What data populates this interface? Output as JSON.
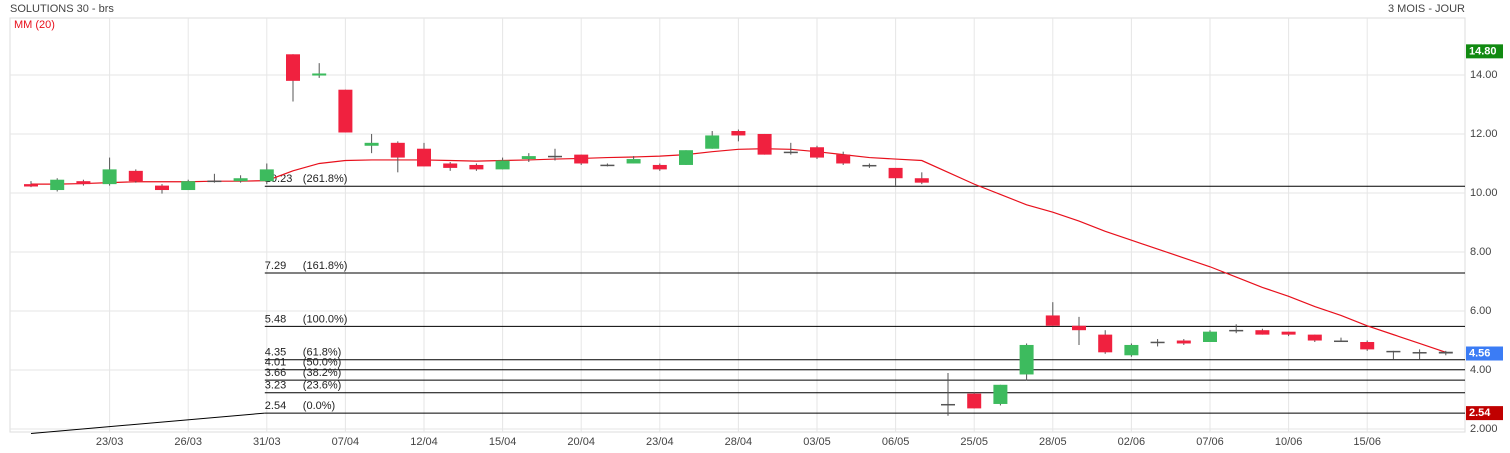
{
  "chart_data": {
    "type": "candlestick",
    "title": "SOLUTIONS 30 - brs",
    "period": "3 MOIS - JOUR",
    "categories": [
      null,
      null,
      null,
      "23/03",
      null,
      null,
      "26/03",
      null,
      null,
      "31/03",
      null,
      null,
      "07/04",
      null,
      null,
      "12/04",
      null,
      null,
      "15/04",
      null,
      null,
      "20/04",
      null,
      null,
      "23/04",
      null,
      null,
      "28/04",
      null,
      null,
      "03/05",
      null,
      null,
      "06/05",
      null,
      null,
      "25/05",
      null,
      null,
      "28/05",
      null,
      null,
      "02/06",
      null,
      null,
      "07/06",
      null,
      null,
      "10/06",
      null,
      null,
      "15/06",
      null,
      null,
      null
    ],
    "open": [
      10.3,
      10.1,
      10.4,
      10.3,
      10.75,
      10.25,
      10.1,
      10.4,
      10.4,
      10.4,
      14.7,
      13.98,
      13.5,
      11.6,
      11.7,
      11.5,
      11.0,
      10.95,
      10.8,
      11.15,
      11.25,
      11.3,
      10.95,
      11.0,
      10.95,
      10.95,
      11.5,
      12.1,
      12.0,
      11.35,
      11.55,
      11.3,
      10.95,
      10.85,
      10.5,
      2.8,
      3.2,
      2.85,
      3.85,
      5.85,
      5.5,
      5.2,
      4.5,
      4.95,
      5.0,
      4.95,
      5.35,
      5.35,
      5.3,
      5.2,
      5.0,
      4.95,
      4.65,
      4.6,
      4.62
    ],
    "high": [
      10.4,
      10.5,
      10.45,
      11.2,
      10.8,
      10.3,
      10.45,
      10.65,
      10.6,
      11.0,
      14.7,
      14.4,
      13.5,
      12.0,
      11.75,
      11.7,
      11.05,
      11.0,
      11.2,
      11.35,
      11.5,
      11.3,
      11.0,
      11.25,
      11.0,
      11.45,
      12.1,
      12.15,
      12.0,
      11.7,
      11.6,
      11.4,
      11.0,
      10.85,
      10.7,
      3.9,
      3.25,
      3.5,
      4.9,
      6.3,
      5.8,
      5.35,
      4.9,
      5.05,
      5.05,
      5.35,
      5.55,
      5.4,
      5.3,
      5.2,
      5.1,
      5.0,
      4.65,
      4.7,
      4.65
    ],
    "low": [
      10.2,
      10.05,
      10.25,
      10.25,
      10.35,
      9.98,
      10.1,
      10.35,
      10.35,
      10.3,
      13.1,
      13.9,
      12.05,
      11.35,
      10.7,
      10.9,
      10.75,
      10.75,
      10.8,
      11.05,
      11.1,
      10.95,
      10.9,
      11.0,
      10.75,
      10.95,
      11.5,
      11.75,
      11.3,
      11.3,
      11.15,
      10.95,
      10.85,
      10.25,
      10.3,
      2.45,
      2.7,
      2.8,
      3.65,
      5.5,
      4.85,
      4.55,
      4.45,
      4.8,
      4.85,
      4.95,
      5.25,
      5.2,
      5.15,
      4.95,
      4.95,
      4.65,
      4.35,
      4.35,
      4.5
    ],
    "close": [
      10.22,
      10.45,
      10.3,
      10.8,
      10.4,
      10.1,
      10.4,
      10.42,
      10.5,
      10.8,
      13.8,
      14.05,
      12.05,
      11.7,
      11.2,
      10.9,
      10.85,
      10.8,
      11.1,
      11.25,
      11.26,
      11.0,
      10.96,
      11.15,
      10.8,
      11.45,
      11.95,
      11.95,
      11.3,
      11.4,
      11.2,
      11.0,
      10.9,
      10.5,
      10.35,
      2.85,
      2.7,
      3.5,
      4.85,
      5.5,
      5.35,
      4.6,
      4.85,
      4.96,
      4.9,
      5.3,
      5.36,
      5.2,
      5.2,
      5.0,
      4.98,
      4.7,
      4.6,
      4.61,
      4.56
    ],
    "up_color": "#3dbb5e",
    "down_color": "#f0213f",
    "ma": {
      "name": "MM (20)",
      "color": "#e8101c",
      "values": [
        10.3,
        10.3,
        10.32,
        10.35,
        10.38,
        10.38,
        10.38,
        10.4,
        10.4,
        10.42,
        10.75,
        11.0,
        11.1,
        11.12,
        11.12,
        11.12,
        11.1,
        11.08,
        11.1,
        11.12,
        11.15,
        11.17,
        11.2,
        11.22,
        11.25,
        11.3,
        11.4,
        11.48,
        11.5,
        11.48,
        11.4,
        11.3,
        11.2,
        11.15,
        11.1,
        10.7,
        10.3,
        9.95,
        9.6,
        9.35,
        9.05,
        8.7,
        8.4,
        8.1,
        7.8,
        7.5,
        7.15,
        6.8,
        6.5,
        6.15,
        5.85,
        5.5,
        5.2,
        4.9,
        4.6
      ]
    },
    "fib_start": 9,
    "fib": [
      {
        "value": 10.23,
        "pct": "(261.8%)"
      },
      {
        "value": 7.29,
        "pct": "(161.8%)"
      },
      {
        "value": 5.48,
        "pct": "(100.0%)"
      },
      {
        "value": 4.35,
        "pct": "(61.8%)"
      },
      {
        "value": 4.01,
        "pct": "(50.0%)"
      },
      {
        "value": 3.66,
        "pct": "(38.2%)"
      },
      {
        "value": 3.23,
        "pct": "(23.6%)"
      },
      {
        "value": 2.54,
        "pct": "(0.0%)"
      }
    ],
    "trend_start": 1.85,
    "tags": [
      {
        "value": 14.8,
        "label": "14.80",
        "color": "#118a11"
      },
      {
        "value": 4.56,
        "label": "4.56",
        "color": "#3b7cf5"
      },
      {
        "value": 2.54,
        "label": "2.54",
        "color": "#c00000"
      }
    ],
    "ylim": [
      1.9,
      15.93
    ],
    "yticks": [
      {
        "value": 2,
        "label": "2.000"
      },
      {
        "value": 4,
        "label": "4.00"
      },
      {
        "value": 6,
        "label": "6.00"
      },
      {
        "value": 8,
        "label": "8.00"
      },
      {
        "value": 10,
        "label": "10.00"
      },
      {
        "value": 12,
        "label": "12.00"
      },
      {
        "value": 14,
        "label": "14.00"
      }
    ],
    "grid": true
  }
}
